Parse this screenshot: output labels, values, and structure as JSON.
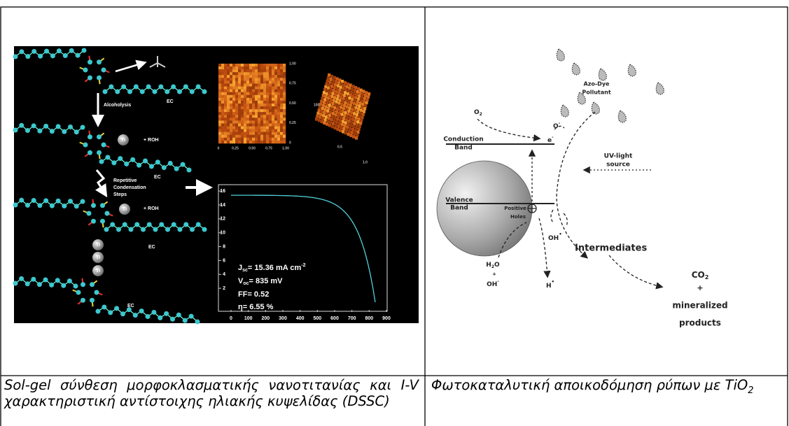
{
  "table": {
    "left_figure": {
      "molecule_labels": {
        "alcoholysis": "Alcoholysis",
        "condensation": [
          "Repetitive",
          "Condensation",
          "Steps"
        ],
        "roh": [
          "+ ROH",
          "+ ROH"
        ],
        "ec": [
          "EC",
          "EC",
          "EC",
          "EC"
        ],
        "ti": [
          "Ti",
          "Ti",
          "Ti",
          "Ti",
          "Ti"
        ]
      },
      "afm_2d": {
        "x_ticks": [
          "0",
          "0.25",
          "0.50",
          "0.75",
          "1.00"
        ],
        "y_ticks": [
          "1.00",
          "0.75",
          "0.50",
          "0.25",
          "0"
        ]
      },
      "afm_3d": {
        "ticks": [
          "100",
          "0.5",
          "1.0"
        ]
      },
      "iv_curve": {
        "x_ticks": [
          0,
          100,
          200,
          300,
          400,
          500,
          600,
          700,
          800,
          900
        ],
        "y_ticks": [
          2,
          4,
          6,
          8,
          10,
          12,
          14,
          16
        ],
        "jsc": {
          "symbol": "J",
          "sub": "sc",
          "text": "= 15.36 mA cm",
          "sup": "-2"
        },
        "voc": {
          "symbol": "V",
          "sub": "oc",
          "text": "= 835 mV"
        },
        "ff": "FF= 0.52",
        "efficiency": "η= 6.55 %"
      }
    },
    "right_figure": {
      "pollutant": [
        "Azo-Dye",
        "Pollutant"
      ],
      "oxygen": {
        "text": "O",
        "sub": "2"
      },
      "superoxide": {
        "text": "O",
        "sup": "-"
      },
      "conduction_band": [
        "Conduction",
        "Band"
      ],
      "electron": {
        "text": "e",
        "sup": "-"
      },
      "uv_source": [
        "UV-light",
        "source"
      ],
      "valence_band": [
        "Valence",
        "Band"
      ],
      "holes": [
        "Positive",
        "Holes"
      ],
      "hydroxyl_radical": {
        "text": "OH",
        "sup": "•"
      },
      "intermediates": "Intermediates",
      "reactants": {
        "water": {
          "text": "H",
          "sub": "2",
          "text2": "O"
        },
        "plus": "+",
        "hydroxide": {
          "text": "OH",
          "sup": "-"
        }
      },
      "hydrogen": {
        "text": "H",
        "sup": "•"
      },
      "products": {
        "co2": {
          "text": "CO",
          "sub": "2"
        },
        "plus": "+",
        "lines": [
          "mineralized",
          "products"
        ]
      }
    },
    "captions": {
      "left": "Sol-gel σύνθεση μορφοκλασματικής νανοτιτανίας και I-V χαρακτηριστική αντίστοιχης ηλιακής κυψελίδας (DSSC)",
      "right": {
        "text": "Φωτοκαταλυτική αποικοδόμηση ρύπων με TiO",
        "sub": "2"
      }
    }
  }
}
